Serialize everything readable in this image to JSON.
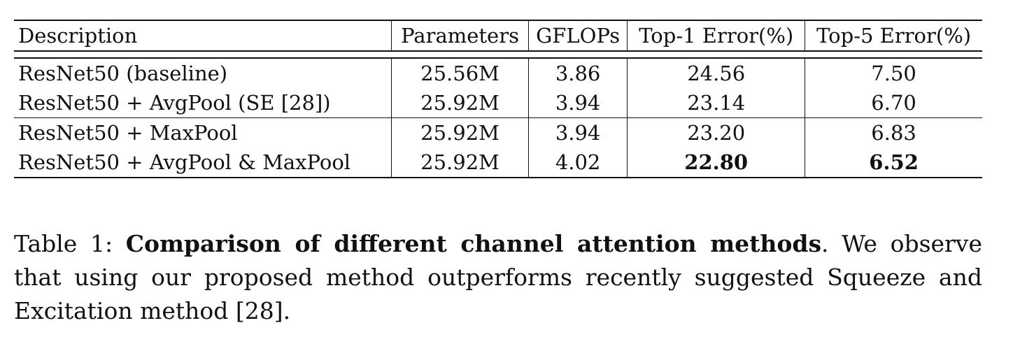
{
  "table": {
    "headers": [
      "Description",
      "Parameters",
      "GFLOPs",
      "Top-1 Error(%)",
      "Top-5 Error(%)"
    ],
    "rows": [
      {
        "description": "ResNet50 (baseline)",
        "parameters": "25.56M",
        "gflops": "3.86",
        "top1": "24.56",
        "top5": "7.50"
      },
      {
        "description": "ResNet50 + AvgPool (SE [28])",
        "parameters": "25.92M",
        "gflops": "3.94",
        "top1": "23.14",
        "top5": "6.70"
      },
      {
        "description": "ResNet50 + MaxPool",
        "parameters": "25.92M",
        "gflops": "3.94",
        "top1": "23.20",
        "top5": "6.83"
      },
      {
        "description": "ResNet50 + AvgPool & MaxPool",
        "parameters": "25.92M",
        "gflops": "4.02",
        "top1": "22.80",
        "top5": "6.52"
      }
    ]
  },
  "caption": {
    "label": "Table 1: ",
    "title": "Comparison of different channel attention methods",
    "body": ". We observe that using our proposed method outperforms recently suggested Squeeze and Excitation method [28]."
  }
}
